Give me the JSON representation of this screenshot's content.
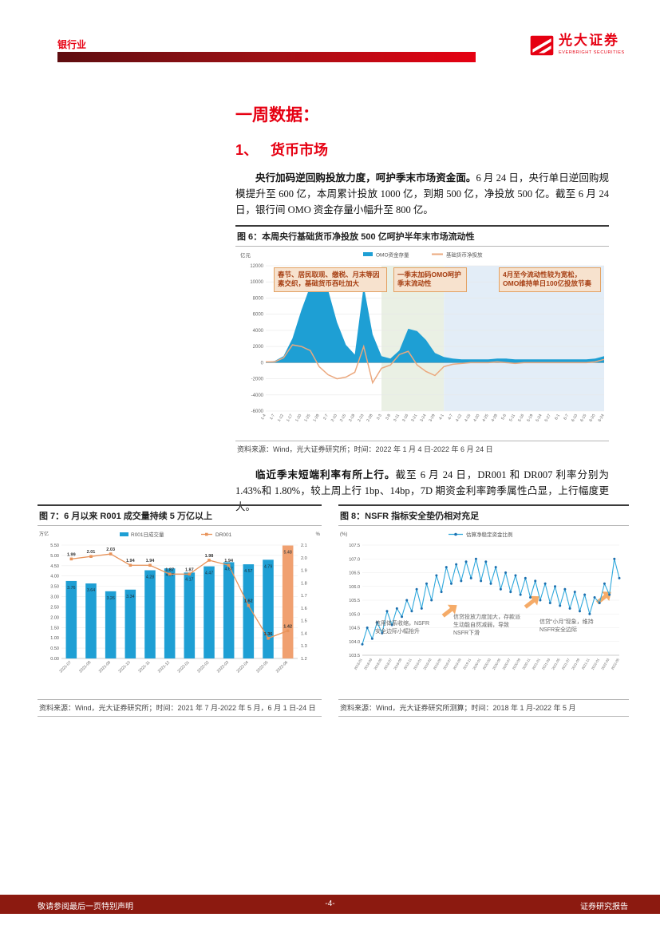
{
  "header": {
    "industry": "银行业",
    "brand_cn": "光大证券",
    "brand_en": "EVERBRIGHT SECURITIES"
  },
  "page": {
    "section_label": "一周数据：",
    "chapter_no": "1、",
    "chapter_title": "货币市场",
    "para1_bold": "央行加码逆回购投放力度，呵护季末市场资金面。",
    "para1_rest": "6 月 24 日，央行单日逆回购规模提升至 600 亿，本周累计投放 1000 亿，到期 500 亿，净投放 500 亿。截至 6 月 24 日，银行间 OMO 资金存量小幅升至 800 亿。",
    "para2_bold": "临近季末短端利率有所上行。",
    "para2_rest": "截至 6 月 24 日，DR001 和 DR007 利率分别为 1.43%和 1.80%，较上周上行 1bp、14bp，7D 期资金利率跨季属性凸显，上行幅度更大。"
  },
  "figures": {
    "fig6": {
      "title": "图 6：本周央行基础货币净投放 500 亿呵护半年末市场流动性",
      "source": "资料来源：Wind，光大证券研究所；时间：2022 年 1 月 4 日-2022 年 6 月 24 日"
    },
    "fig7": {
      "title": "图 7：6 月以来 R001 成交量持续 5 万亿以上",
      "source": "资料来源：Wind，光大证券研究所；时间：2021 年 7 月-2022 年 5 月，6 月 1 日-24 日"
    },
    "fig8": {
      "title": "图 8：NSFR 指标安全垫仍相对充足",
      "source": "资料来源：Wind，光大证券研究所测算；时间：2018 年 1 月-2022 年 5 月"
    }
  },
  "footer": {
    "left": "敬请参阅最后一页特别声明",
    "page": "-4-",
    "right": "证券研究报告"
  },
  "colors": {
    "accent": "#E60012",
    "footer_bar": "#8C1A10",
    "chart_blue": "#1E9FD4",
    "chart_orange": "#EBA87E"
  },
  "chart_data": [
    {
      "id": "fig6",
      "type": "area",
      "title": "本周央行基础货币净投放500亿呵护半年末市场流动性",
      "unit": "亿元",
      "ylim": [
        -6000,
        12000
      ],
      "ytick": 2000,
      "x": [
        "1-4",
        "1-7",
        "1-12",
        "1-17",
        "1-20",
        "1-25",
        "1-28",
        "2-7",
        "2-10",
        "2-15",
        "2-18",
        "2-23",
        "2-28",
        "3-3",
        "3-8",
        "3-11",
        "3-16",
        "3-21",
        "3-24",
        "3-29",
        "4-1",
        "4-7",
        "4-12",
        "4-15",
        "4-20",
        "4-25",
        "4-28",
        "5-6",
        "5-11",
        "5-16",
        "5-19",
        "5-24",
        "5-27",
        "6-1",
        "6-7",
        "6-10",
        "6-15",
        "6-20",
        "6-24"
      ],
      "series": [
        {
          "name": "OMO资金存量",
          "type": "area",
          "color": "#1E9FD4",
          "values": [
            100,
            200,
            800,
            3000,
            6500,
            9500,
            10500,
            9000,
            5000,
            2200,
            1000,
            9500,
            3500,
            800,
            500,
            1500,
            4200,
            3900,
            2800,
            1200,
            700,
            500,
            400,
            400,
            400,
            400,
            500,
            500,
            400,
            400,
            400,
            400,
            400,
            400,
            400,
            400,
            400,
            500,
            800
          ]
        },
        {
          "name": "基础货币净投放",
          "type": "line",
          "color": "#EBA87E",
          "values": [
            100,
            100,
            600,
            2200,
            2000,
            1500,
            -500,
            -1500,
            -2000,
            -1800,
            -1200,
            2000,
            -2500,
            -700,
            -300,
            1000,
            1400,
            -300,
            -1100,
            -1600,
            -500,
            -200,
            -100,
            0,
            0,
            0,
            100,
            0,
            -100,
            0,
            0,
            0,
            0,
            0,
            0,
            0,
            0,
            100,
            400
          ]
        }
      ],
      "regions": [
        {
          "from": 13,
          "to": 20,
          "color": "#EAF0E4"
        },
        {
          "from": 20,
          "to": 38,
          "color": "#E3EDF7"
        }
      ],
      "annotations": [
        {
          "text": "春节、居民取现、缴税、月末等因素交织，基础货币吞吐加大"
        },
        {
          "text": "一季末加码OMO呵护季末流动性"
        },
        {
          "text": "4月至今流动性较为宽松，OMO维持单日100亿投放节奏"
        }
      ]
    },
    {
      "id": "fig7",
      "type": "bar-line",
      "unit_left": "万亿",
      "unit_right": "%",
      "ylim_left": [
        0,
        5.5
      ],
      "ytick_left": 0.5,
      "ylim_right": [
        1.2,
        2.1
      ],
      "ytick_right": 0.1,
      "categories": [
        "2021-07",
        "2021-08",
        "2021-09",
        "2021-10",
        "2021-11",
        "2021-12",
        "2022-01",
        "2022-02",
        "2022-03",
        "2022-04",
        "2022-05",
        "2022-06"
      ],
      "series": [
        {
          "name": "R001日成交量",
          "type": "bar",
          "color": "#1E9FD4",
          "highlight_color": "#F0A070",
          "values": [
            3.76,
            3.64,
            3.26,
            3.34,
            4.28,
            4.37,
            4.17,
            4.47,
            4.67,
            4.57,
            4.79,
            5.48
          ]
        },
        {
          "name": "DR001",
          "type": "line",
          "axis": "right",
          "color": "#E8935A",
          "values": [
            1.99,
            2.01,
            2.03,
            1.94,
            1.94,
            1.87,
            1.87,
            1.98,
            1.94,
            1.62,
            1.36,
            1.42
          ]
        }
      ]
    },
    {
      "id": "fig8",
      "type": "line",
      "unit": "(%)",
      "ylim": [
        103.5,
        107.5
      ],
      "ytick": 0.5,
      "x": [
        "2018-01",
        "2018-02",
        "2018-03",
        "2018-04",
        "2018-05",
        "2018-06",
        "2018-07",
        "2018-08",
        "2018-09",
        "2018-10",
        "2018-11",
        "2018-12",
        "2019-01",
        "2019-02",
        "2019-03",
        "2019-04",
        "2019-05",
        "2019-06",
        "2019-07",
        "2019-08",
        "2019-09",
        "2019-10",
        "2019-11",
        "2019-12",
        "2020-01",
        "2020-02",
        "2020-03",
        "2020-04",
        "2020-05",
        "2020-06",
        "2020-07",
        "2020-08",
        "2020-09",
        "2020-10",
        "2020-11",
        "2020-12",
        "2021-01",
        "2021-02",
        "2021-03",
        "2021-04",
        "2021-05",
        "2021-06",
        "2021-07",
        "2021-08",
        "2021-09",
        "2021-10",
        "2021-11",
        "2021-12",
        "2022-01",
        "2022-02",
        "2022-03",
        "2022-04",
        "2022-05"
      ],
      "series": [
        {
          "name": "估算净稳定资金比例",
          "color": "#2FA8DC",
          "marker_color": "#1C6FAE",
          "values": [
            103.9,
            104.5,
            104.1,
            104.7,
            104.3,
            105.1,
            104.6,
            105.2,
            104.9,
            105.5,
            105.1,
            105.9,
            105.2,
            106.1,
            105.5,
            106.4,
            105.8,
            106.7,
            106.1,
            106.8,
            106.2,
            106.9,
            106.3,
            107.0,
            106.2,
            106.9,
            106.1,
            106.7,
            105.9,
            106.5,
            105.8,
            106.4,
            105.7,
            106.3,
            105.6,
            106.2,
            105.5,
            106.1,
            105.4,
            106.0,
            105.3,
            105.9,
            105.2,
            105.8,
            105.1,
            105.7,
            105.0,
            105.6,
            105.4,
            106.1,
            105.7,
            107.0,
            106.3
          ]
        }
      ],
      "annotations": [
        {
          "text": "信用体系收缩，NSFR安全边际小幅抬升"
        },
        {
          "text": "信贷投放力度加大，存款派生动能自然减弱，导致NSFR下滑"
        },
        {
          "text": "信贷“小月”现象，维持NSFR安全边际"
        }
      ]
    }
  ]
}
